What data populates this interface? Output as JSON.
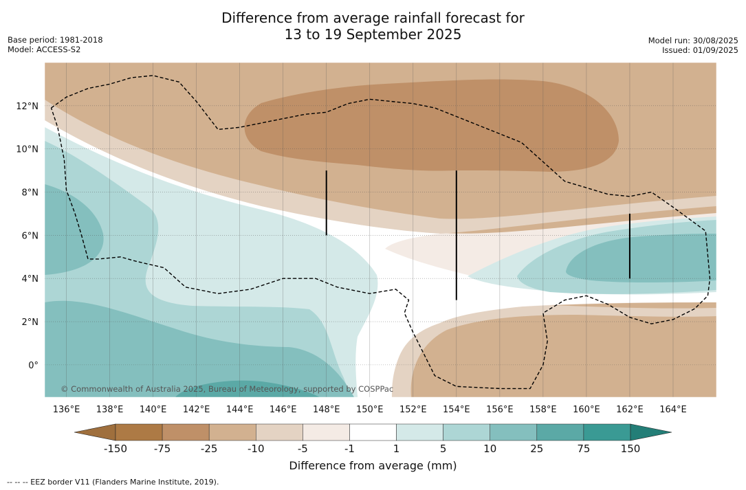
{
  "title": {
    "line1": "Difference from average rainfall forecast for",
    "line2": "13 to 19 September 2025"
  },
  "meta_left": {
    "base_period": "Base period: 1981-2018",
    "model": "Model: ACCESS-S2"
  },
  "meta_right": {
    "model_run": "Model run: 30/08/2025",
    "issued": "Issued: 01/09/2025"
  },
  "map": {
    "lon_range": [
      135,
      166
    ],
    "lat_range": [
      -1.5,
      14
    ],
    "lon_ticks": [
      {
        "value": 136,
        "label": "136°E"
      },
      {
        "value": 138,
        "label": "138°E"
      },
      {
        "value": 140,
        "label": "140°E"
      },
      {
        "value": 142,
        "label": "142°E"
      },
      {
        "value": 144,
        "label": "144°E"
      },
      {
        "value": 146,
        "label": "146°E"
      },
      {
        "value": 148,
        "label": "148°E"
      },
      {
        "value": 150,
        "label": "150°E"
      },
      {
        "value": 152,
        "label": "152°E"
      },
      {
        "value": 154,
        "label": "154°E"
      },
      {
        "value": 156,
        "label": "156°E"
      },
      {
        "value": 158,
        "label": "158°E"
      },
      {
        "value": 160,
        "label": "160°E"
      },
      {
        "value": 162,
        "label": "162°E"
      },
      {
        "value": 164,
        "label": "164°E"
      }
    ],
    "lat_ticks": [
      {
        "value": 0,
        "label": "0°"
      },
      {
        "value": 2,
        "label": "2°N"
      },
      {
        "value": 4,
        "label": "4°N"
      },
      {
        "value": 6,
        "label": "6°N"
      },
      {
        "value": 8,
        "label": "8°N"
      },
      {
        "value": 10,
        "label": "10°N"
      },
      {
        "value": 12,
        "label": "12°N"
      }
    ],
    "gridlines": true,
    "copyright": "© Commonwealth of Australia 2025, Bureau of Meteorology, supported by COSPPac",
    "background_color": "#d2b190",
    "boundary_markers": [
      {
        "lon": 148,
        "lat_from": 6,
        "lat_to": 9
      },
      {
        "lon": 154,
        "lat_from": 3,
        "lat_to": 9
      },
      {
        "lon": 162,
        "lat_from": 4,
        "lat_to": 7
      }
    ],
    "eez_border": [
      [
        135.3,
        11.9
      ],
      [
        136,
        12.4
      ],
      [
        137,
        12.8
      ],
      [
        138,
        13.0
      ],
      [
        139,
        13.3
      ],
      [
        140,
        13.4
      ],
      [
        141.2,
        13.1
      ],
      [
        142,
        12.2
      ],
      [
        143,
        10.9
      ],
      [
        144,
        11.0
      ],
      [
        145.5,
        11.3
      ],
      [
        147,
        11.6
      ],
      [
        148,
        11.7
      ],
      [
        149,
        12.1
      ],
      [
        150,
        12.3
      ],
      [
        151,
        12.2
      ],
      [
        152,
        12.1
      ],
      [
        153,
        11.9
      ],
      [
        154,
        11.5
      ],
      [
        155,
        11.1
      ],
      [
        156,
        10.7
      ],
      [
        157,
        10.3
      ],
      [
        158,
        9.4
      ],
      [
        159,
        8.5
      ],
      [
        160,
        8.2
      ],
      [
        161,
        7.9
      ],
      [
        162,
        7.8
      ],
      [
        163,
        8.0
      ],
      [
        164,
        7.3
      ],
      [
        165.5,
        6.2
      ],
      [
        165.7,
        4.0
      ],
      [
        165.6,
        3.2
      ],
      [
        165,
        2.6
      ],
      [
        164,
        2.1
      ],
      [
        163,
        1.9
      ],
      [
        162,
        2.2
      ],
      [
        161,
        2.8
      ],
      [
        160,
        3.2
      ],
      [
        159,
        3.0
      ],
      [
        158,
        2.4
      ],
      [
        158.2,
        1.1
      ],
      [
        158,
        0.0
      ],
      [
        157.4,
        -1.1
      ],
      [
        156,
        -1.1
      ],
      [
        154,
        -1.0
      ],
      [
        153,
        -0.5
      ],
      [
        152,
        1.5
      ],
      [
        151.6,
        2.4
      ],
      [
        151.8,
        3.0
      ],
      [
        151.2,
        3.5
      ],
      [
        150,
        3.3
      ],
      [
        148.5,
        3.6
      ],
      [
        147.5,
        4.0
      ],
      [
        146,
        4.0
      ],
      [
        144.5,
        3.5
      ],
      [
        143,
        3.3
      ],
      [
        141.5,
        3.6
      ],
      [
        140.5,
        4.5
      ],
      [
        139.2,
        4.8
      ],
      [
        138.5,
        5.0
      ],
      [
        137.5,
        4.9
      ],
      [
        137,
        4.9
      ],
      [
        136.7,
        6.0
      ],
      [
        136.4,
        7.0
      ],
      [
        136,
        8.1
      ],
      [
        135.9,
        9.5
      ],
      [
        135.6,
        11.0
      ],
      [
        135.3,
        11.9
      ]
    ]
  },
  "colorbar": {
    "title": "Difference from average (mm)",
    "ticks": [
      "-150",
      "-75",
      "-25",
      "-10",
      "-5",
      "-1",
      "1",
      "5",
      "10",
      "25",
      "75",
      "150"
    ],
    "colors": {
      "under": "#9f6f3d",
      "bins": [
        "#ad7a45",
        "#bf9068",
        "#d2b190",
        "#e4d3c3",
        "#f4ebe5",
        "#ffffff",
        "#d4e9e8",
        "#add6d5",
        "#84bfbe",
        "#5ba9a6",
        "#3a9a94"
      ],
      "over": "#237e77"
    }
  },
  "footnote": "--  --  -- EEZ border V11 (Flanders Marine Institute, 2019)."
}
